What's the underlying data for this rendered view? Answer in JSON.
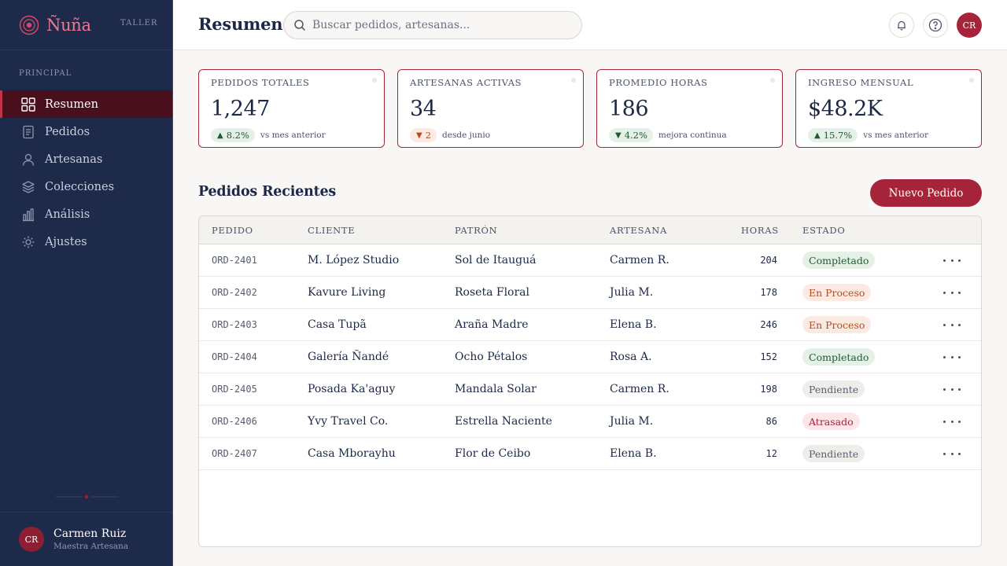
{
  "brand": {
    "name": "Ñuña",
    "tag": "TALLER"
  },
  "sidebar": {
    "section_label": "PRINCIPAL",
    "items": [
      {
        "label": "Resumen",
        "icon": "grid-icon",
        "active": true
      },
      {
        "label": "Pedidos",
        "icon": "document-icon",
        "active": false
      },
      {
        "label": "Artesanas",
        "icon": "user-icon",
        "active": false
      },
      {
        "label": "Colecciones",
        "icon": "layers-icon",
        "active": false
      },
      {
        "label": "Análisis",
        "icon": "bar-chart-icon",
        "active": false
      },
      {
        "label": "Ajustes",
        "icon": "gear-icon",
        "active": false
      }
    ],
    "user": {
      "initials": "CR",
      "name": "Carmen Ruiz",
      "role": "Maestra Artesana"
    }
  },
  "header": {
    "title": "Resumen",
    "search_placeholder": "Buscar pedidos, artesanas...",
    "avatar_initials": "CR"
  },
  "stats": [
    {
      "label": "PEDIDOS TOTALES",
      "value": "1,247",
      "change": "8.2%",
      "direction": "up",
      "note": "vs mes anterior"
    },
    {
      "label": "ARTESANAS ACTIVAS",
      "value": "34",
      "change": "2",
      "direction": "down",
      "note": "desde junio"
    },
    {
      "label": "PROMEDIO HORAS",
      "value": "186",
      "change": "4.2%",
      "direction": "down-good",
      "note": "mejora continua"
    },
    {
      "label": "INGRESO MENSUAL",
      "value": "$48.2K",
      "change": "15.7%",
      "direction": "up",
      "note": "vs mes anterior"
    }
  ],
  "orders": {
    "title": "Pedidos Recientes",
    "new_button": "Nuevo Pedido",
    "columns": [
      "PEDIDO",
      "CLIENTE",
      "PATRÓN",
      "ARTESANA",
      "HORAS",
      "ESTADO"
    ],
    "rows": [
      {
        "id": "ORD-2401",
        "client": "M. López Studio",
        "pattern": "Sol de Itauguá",
        "artisan": "Carmen R.",
        "hours": "204",
        "status": "Completado",
        "status_type": "done"
      },
      {
        "id": "ORD-2402",
        "client": "Kavure Living",
        "pattern": "Roseta Floral",
        "artisan": "Julia M.",
        "hours": "178",
        "status": "En Proceso",
        "status_type": "progress"
      },
      {
        "id": "ORD-2403",
        "client": "Casa Tupã",
        "pattern": "Araña Madre",
        "artisan": "Elena B.",
        "hours": "246",
        "status": "En Proceso",
        "status_type": "progress"
      },
      {
        "id": "ORD-2404",
        "client": "Galería Ñandé",
        "pattern": "Ocho Pétalos",
        "artisan": "Rosa A.",
        "hours": "152",
        "status": "Completado",
        "status_type": "done"
      },
      {
        "id": "ORD-2405",
        "client": "Posada Ka'aguy",
        "pattern": "Mandala Solar",
        "artisan": "Carmen R.",
        "hours": "198",
        "status": "Pendiente",
        "status_type": "pending"
      },
      {
        "id": "ORD-2406",
        "client": "Yvy Travel Co.",
        "pattern": "Estrella Naciente",
        "artisan": "Julia M.",
        "hours": "86",
        "status": "Atrasado",
        "status_type": "late"
      },
      {
        "id": "ORD-2407",
        "client": "Casa Mborayhu",
        "pattern": "Flor de Ceibo",
        "artisan": "Elena B.",
        "hours": "12",
        "status": "Pendiente",
        "status_type": "pending"
      }
    ]
  },
  "colors": {
    "sidebar": "#1e2a4a",
    "accent": "#a52439",
    "active_bg": "#4a0f1c",
    "brand": "#e97a95"
  }
}
